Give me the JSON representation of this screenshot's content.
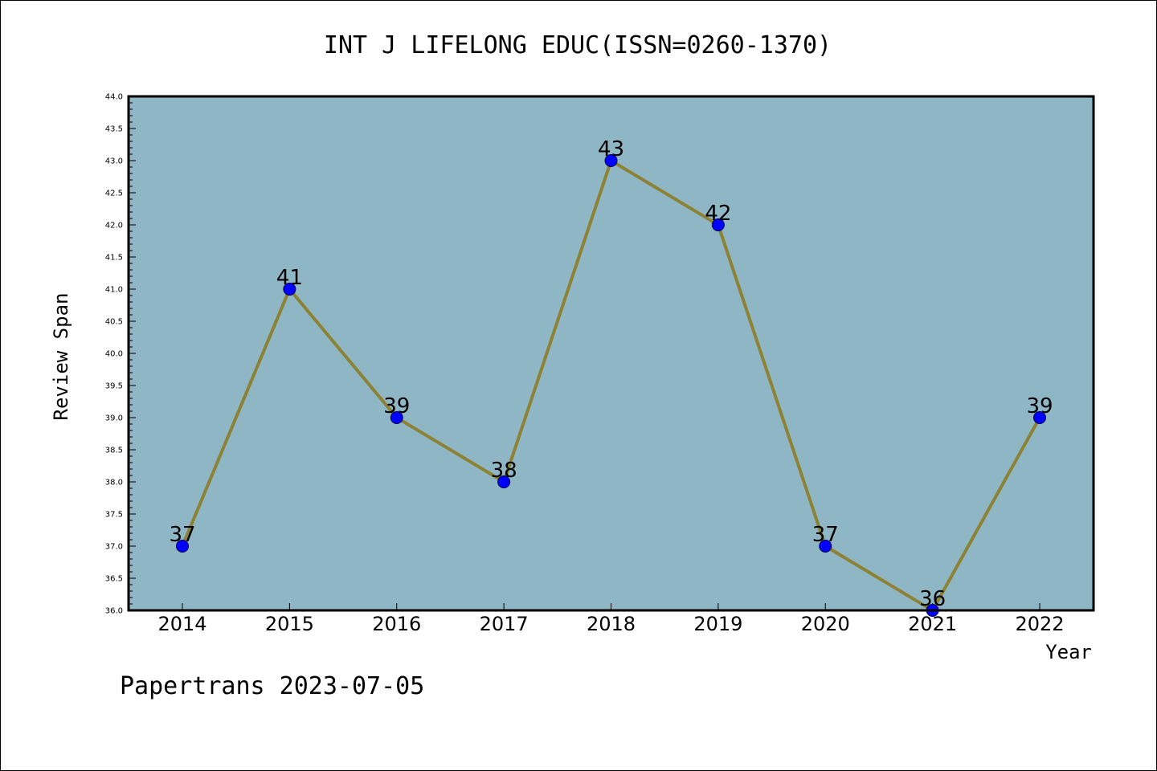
{
  "chart_data": {
    "type": "line",
    "title": "INT J LIFELONG EDUC(ISSN=0260-1370)",
    "xlabel": "Year",
    "ylabel": "Review Span",
    "categories": [
      "2014",
      "2015",
      "2016",
      "2017",
      "2018",
      "2019",
      "2020",
      "2021",
      "2022"
    ],
    "values": [
      37,
      41,
      39,
      38,
      43,
      42,
      37,
      36,
      39
    ],
    "data_labels": [
      "37",
      "41",
      "39",
      "38",
      "43",
      "42",
      "37",
      "36",
      "39"
    ],
    "ylim": [
      36.0,
      44.0
    ],
    "y_ticks": [
      "36.0",
      "36.5",
      "37.0",
      "37.5",
      "38.0",
      "38.5",
      "39.0",
      "39.5",
      "40.0",
      "40.5",
      "41.0",
      "41.5",
      "42.0",
      "42.5",
      "43.0",
      "43.5",
      "44.0"
    ],
    "grid": false,
    "legend": "none",
    "colors": {
      "plot_background": "#8fb6c4",
      "line": "#8c8235",
      "marker": "#0000ff",
      "marker_edge": "#00004d"
    }
  },
  "footer": {
    "text": "Papertrans 2023-07-05"
  }
}
